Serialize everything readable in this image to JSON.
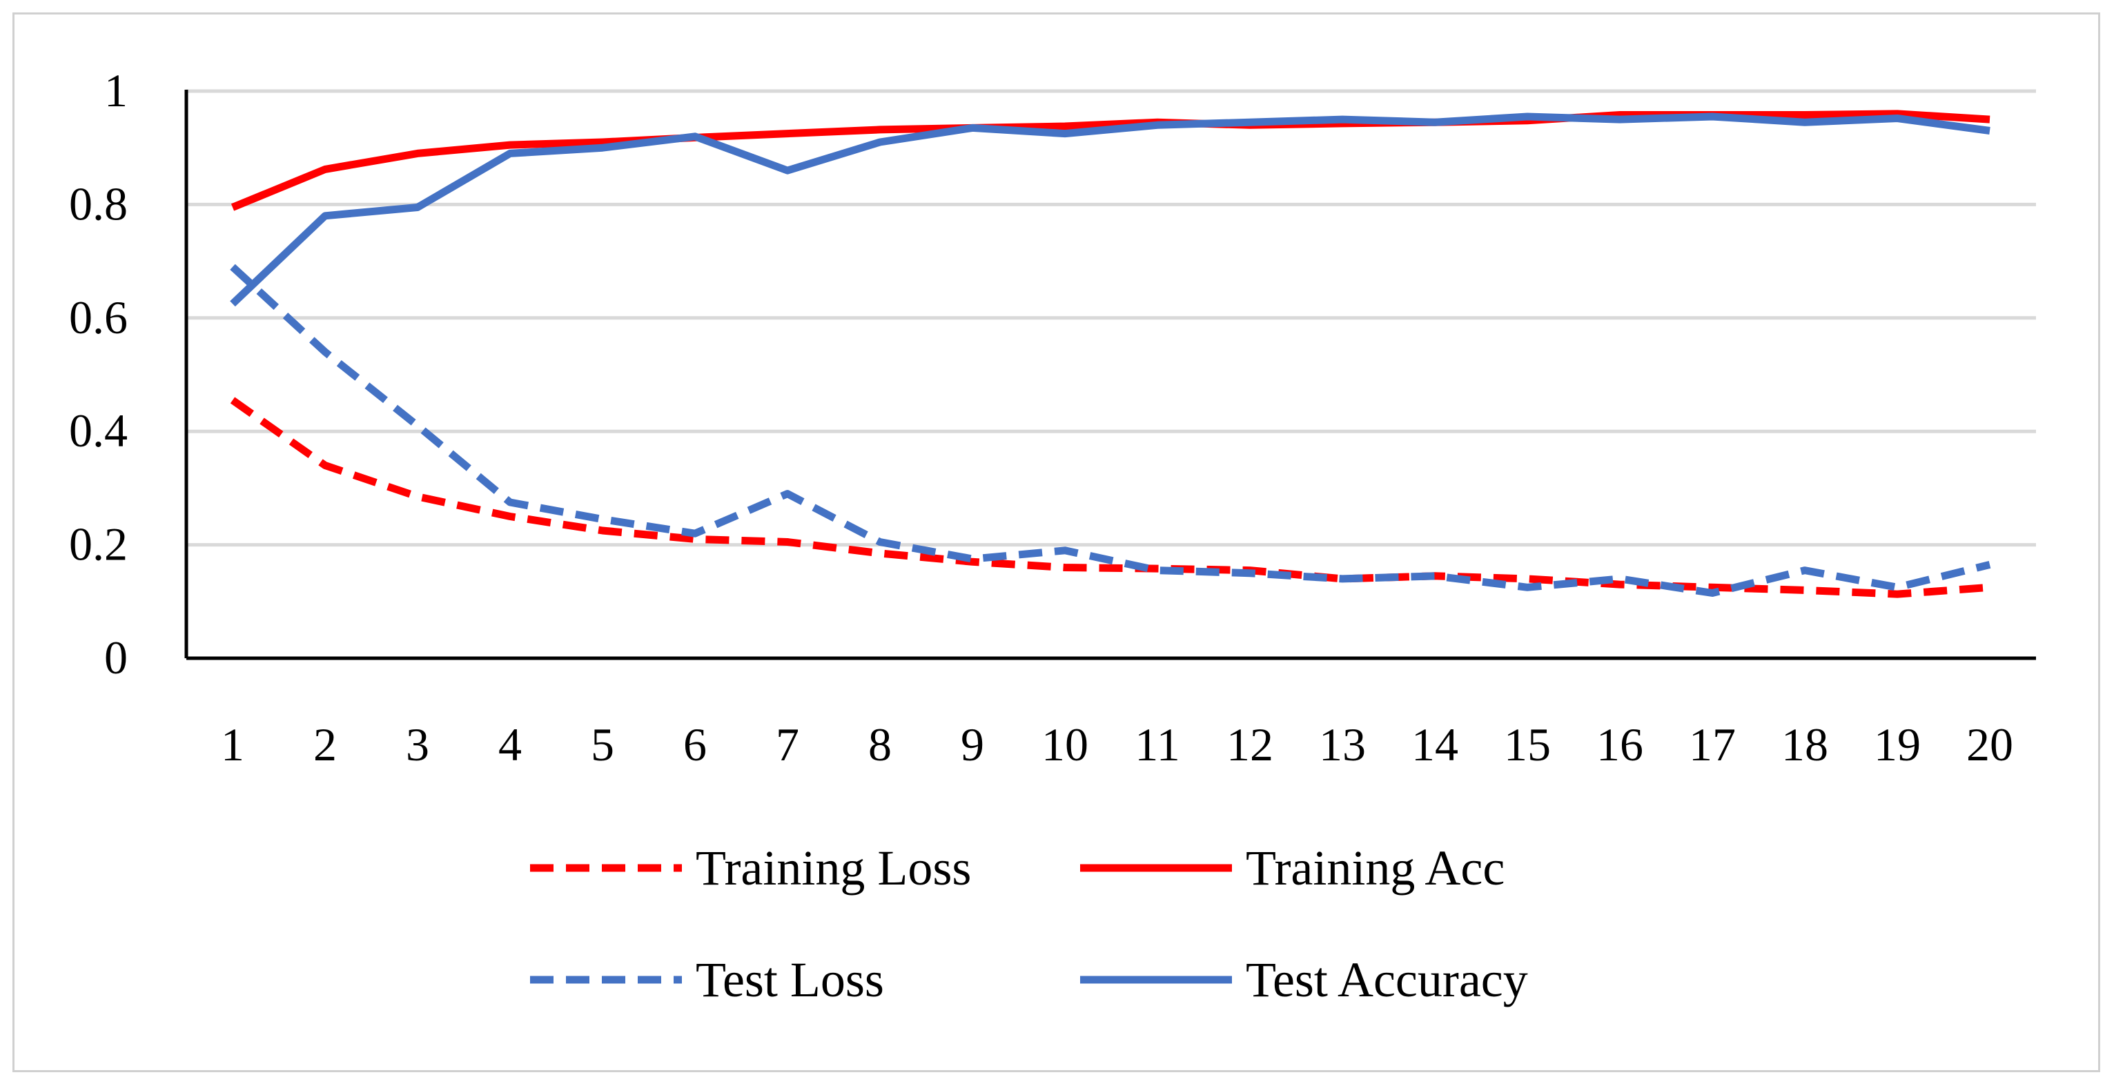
{
  "chart_data": {
    "type": "line",
    "title": "",
    "xlabel": "",
    "ylabel": "",
    "categories": [
      "1",
      "2",
      "3",
      "4",
      "5",
      "6",
      "7",
      "8",
      "9",
      "10",
      "11",
      "12",
      "13",
      "14",
      "15",
      "16",
      "17",
      "18",
      "19",
      "20"
    ],
    "ylim": [
      0,
      1
    ],
    "yticks": [
      0,
      0.2,
      0.4,
      0.6,
      0.8,
      1
    ],
    "ytick_labels": [
      "0",
      "0.2",
      "0.4",
      "0.6",
      "0.8",
      "1"
    ],
    "grid": true,
    "legend_position": "bottom",
    "series": [
      {
        "name": "Training Loss",
        "color": "#ff0000",
        "style": "dashed",
        "values": [
          0.455,
          0.34,
          0.285,
          0.25,
          0.225,
          0.21,
          0.205,
          0.185,
          0.17,
          0.16,
          0.158,
          0.155,
          0.14,
          0.145,
          0.14,
          0.13,
          0.125,
          0.12,
          0.113,
          0.125
        ]
      },
      {
        "name": "Training Acc",
        "color": "#ff0000",
        "style": "solid",
        "values": [
          0.795,
          0.862,
          0.89,
          0.905,
          0.91,
          0.918,
          0.925,
          0.932,
          0.935,
          0.938,
          0.945,
          0.94,
          0.943,
          0.945,
          0.948,
          0.958,
          0.958,
          0.958,
          0.96,
          0.95
        ]
      },
      {
        "name": "Test Loss",
        "color": "#4472c4",
        "style": "dashed",
        "values": [
          0.69,
          0.54,
          0.41,
          0.275,
          0.245,
          0.22,
          0.29,
          0.205,
          0.175,
          0.19,
          0.155,
          0.15,
          0.14,
          0.145,
          0.125,
          0.14,
          0.115,
          0.155,
          0.125,
          0.165
        ]
      },
      {
        "name": "Test Accuracy",
        "color": "#4472c4",
        "style": "solid",
        "values": [
          0.625,
          0.78,
          0.795,
          0.89,
          0.9,
          0.92,
          0.86,
          0.91,
          0.935,
          0.925,
          0.94,
          0.945,
          0.95,
          0.945,
          0.955,
          0.95,
          0.955,
          0.945,
          0.952,
          0.93
        ]
      }
    ]
  },
  "colors": {
    "grid": "#d9d9d9",
    "axis": "#000000",
    "frame": "#d0d0d0"
  }
}
